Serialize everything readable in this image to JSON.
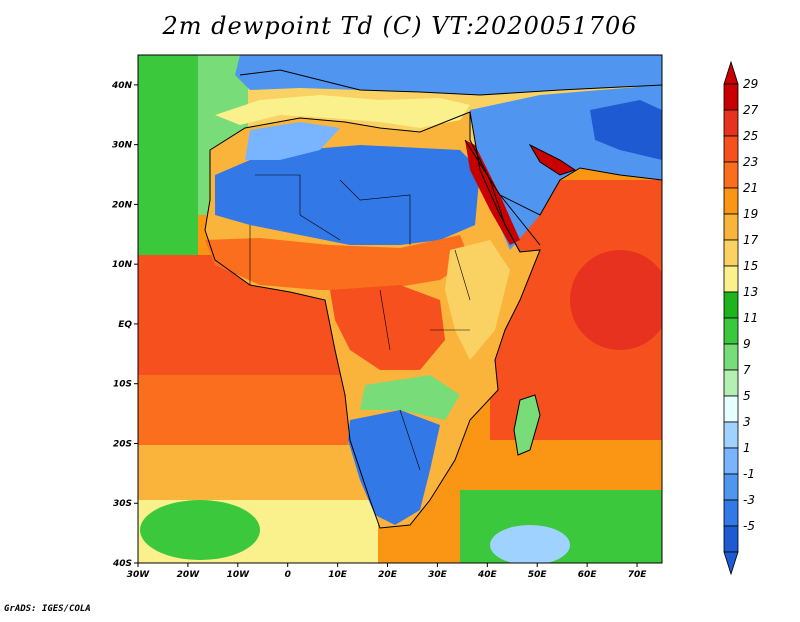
{
  "title": "2m dewpoint Td (C) VT:2020051706",
  "footer": "GrADS: IGES/COLA",
  "map": {
    "lon_range": [
      -30,
      75
    ],
    "lat_range": [
      -40,
      45
    ],
    "lon_ticks": [
      {
        "value": -30,
        "label": "30W"
      },
      {
        "value": -20,
        "label": "20W"
      },
      {
        "value": -10,
        "label": "10W"
      },
      {
        "value": 0,
        "label": "0"
      },
      {
        "value": 10,
        "label": "10E"
      },
      {
        "value": 20,
        "label": "20E"
      },
      {
        "value": 30,
        "label": "30E"
      },
      {
        "value": 40,
        "label": "40E"
      },
      {
        "value": 50,
        "label": "50E"
      },
      {
        "value": 60,
        "label": "60E"
      },
      {
        "value": 70,
        "label": "70E"
      }
    ],
    "lat_ticks": [
      {
        "value": 40,
        "label": "40N"
      },
      {
        "value": 30,
        "label": "30N"
      },
      {
        "value": 20,
        "label": "20N"
      },
      {
        "value": 10,
        "label": "10N"
      },
      {
        "value": 0,
        "label": "EQ"
      },
      {
        "value": -10,
        "label": "10S"
      },
      {
        "value": -20,
        "label": "20S"
      },
      {
        "value": -30,
        "label": "30S"
      },
      {
        "value": -40,
        "label": "40S"
      }
    ]
  },
  "colorbar": {
    "levels": [
      "29",
      "27",
      "25",
      "23",
      "21",
      "19",
      "17",
      "15",
      "13",
      "11",
      "9",
      "7",
      "5",
      "3",
      "1",
      "-1",
      "-3",
      "-5"
    ],
    "colors": [
      "#c80000",
      "#e6321e",
      "#f5501e",
      "#fa6e1e",
      "#fa9614",
      "#fab43c",
      "#fad264",
      "#faf08c",
      "#1eb41e",
      "#3cc83c",
      "#78dc78",
      "#b4f0b4",
      "#e6ffff",
      "#a0d2ff",
      "#78b4ff",
      "#5096f0",
      "#3278e6",
      "#1e5ad2"
    ]
  }
}
